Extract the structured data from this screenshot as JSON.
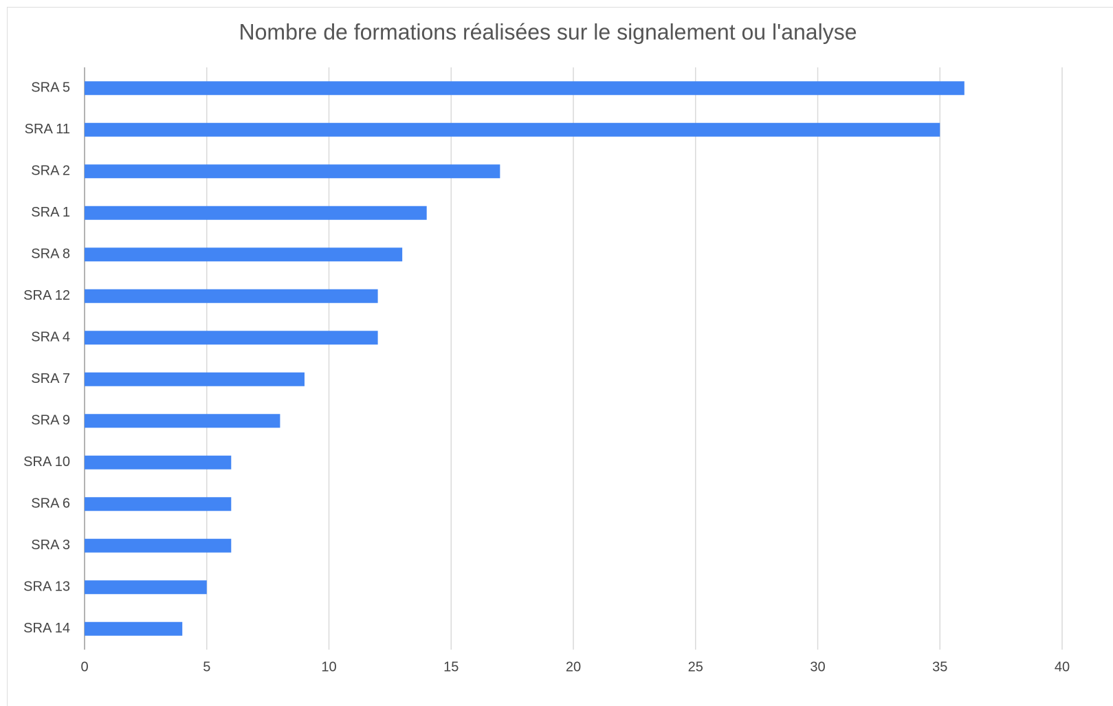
{
  "chart_data": {
    "type": "bar",
    "orientation": "horizontal",
    "title": "Nombre de formations réalisées sur le signalement ou l'analyse",
    "categories": [
      "SRA 5",
      "SRA 11",
      "SRA 2",
      "SRA 1",
      "SRA 8",
      "SRA 12",
      "SRA 4",
      "SRA 7",
      "SRA 9",
      "SRA 10",
      "SRA 6",
      "SRA 3",
      "SRA 13",
      "SRA 14"
    ],
    "values": [
      36,
      35,
      17,
      14,
      13,
      12,
      12,
      9,
      8,
      6,
      6,
      6,
      5,
      4
    ],
    "color": "#4285f4",
    "xlim": [
      0,
      40
    ],
    "xticks": [
      0,
      5,
      10,
      15,
      20,
      25,
      30,
      35,
      40
    ],
    "grid": true
  }
}
